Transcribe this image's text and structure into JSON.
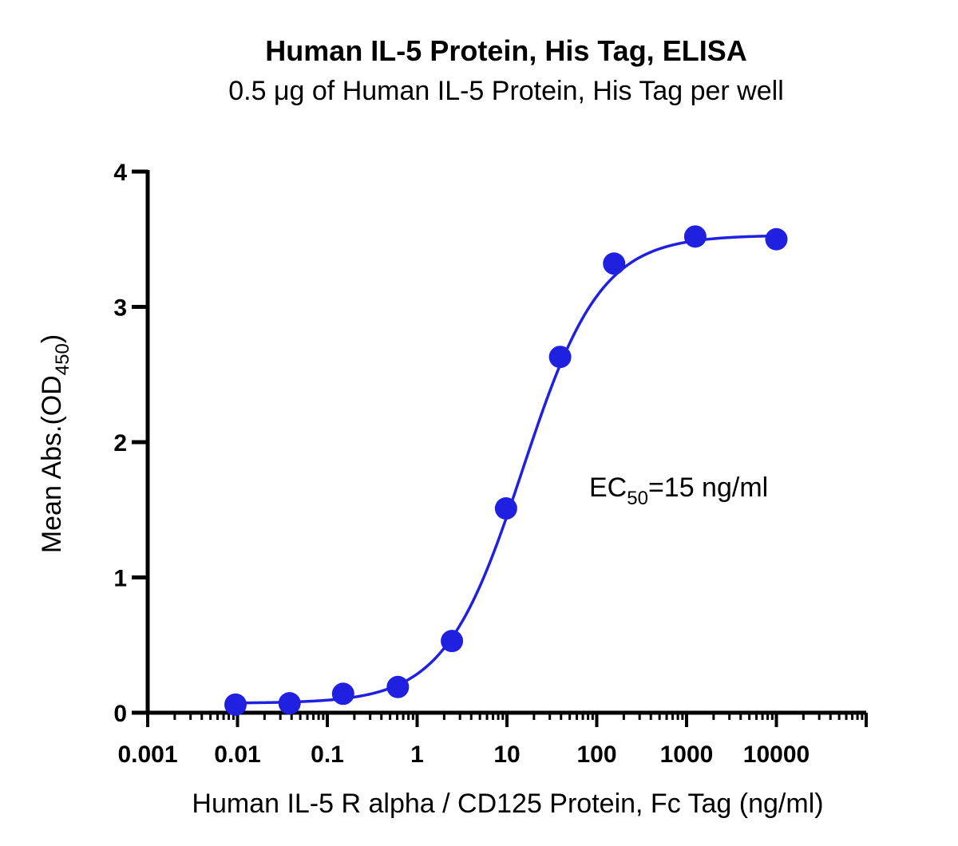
{
  "chart_data": {
    "type": "scatter",
    "title": "Human IL-5 Protein, His Tag, ELISA",
    "subtitle": "0.5 μg of Human IL-5 Protein, His Tag per well",
    "xlabel": "Human IL-5 R alpha / CD125 Protein, Fc Tag (ng/ml)",
    "ylabel": {
      "main": "Mean Abs.(OD",
      "sub": "450",
      "close": ")"
    },
    "x_scale": "log",
    "xlim": [
      0.001,
      100000
    ],
    "ylim": [
      0,
      4
    ],
    "x_ticks": [
      {
        "value": 0.001,
        "label": "0.001"
      },
      {
        "value": 0.01,
        "label": "0.01"
      },
      {
        "value": 0.1,
        "label": "0.1"
      },
      {
        "value": 1,
        "label": "1"
      },
      {
        "value": 10,
        "label": "10"
      },
      {
        "value": 100,
        "label": "100"
      },
      {
        "value": 1000,
        "label": "1000"
      },
      {
        "value": 10000,
        "label": "10000"
      }
    ],
    "y_ticks": [
      {
        "value": 0,
        "label": "0"
      },
      {
        "value": 1,
        "label": "1"
      },
      {
        "value": 2,
        "label": "2"
      },
      {
        "value": 3,
        "label": "3"
      },
      {
        "value": 4,
        "label": "4"
      }
    ],
    "grid": false,
    "color": "#2020e0",
    "series": [
      {
        "x": [
          0.0095,
          0.038,
          0.15,
          0.61,
          2.44,
          9.77,
          39.1,
          156,
          1250,
          10000
        ],
        "y": [
          0.06,
          0.07,
          0.14,
          0.19,
          0.53,
          1.51,
          2.63,
          3.32,
          3.52,
          3.5
        ]
      }
    ],
    "fit": {
      "bottom": 0.07,
      "top": 3.53,
      "ec50": 15,
      "hill": 1.0
    },
    "annotation": {
      "prefix": "EC",
      "sub": "50",
      "suffix": "=15 ng/ml"
    }
  }
}
